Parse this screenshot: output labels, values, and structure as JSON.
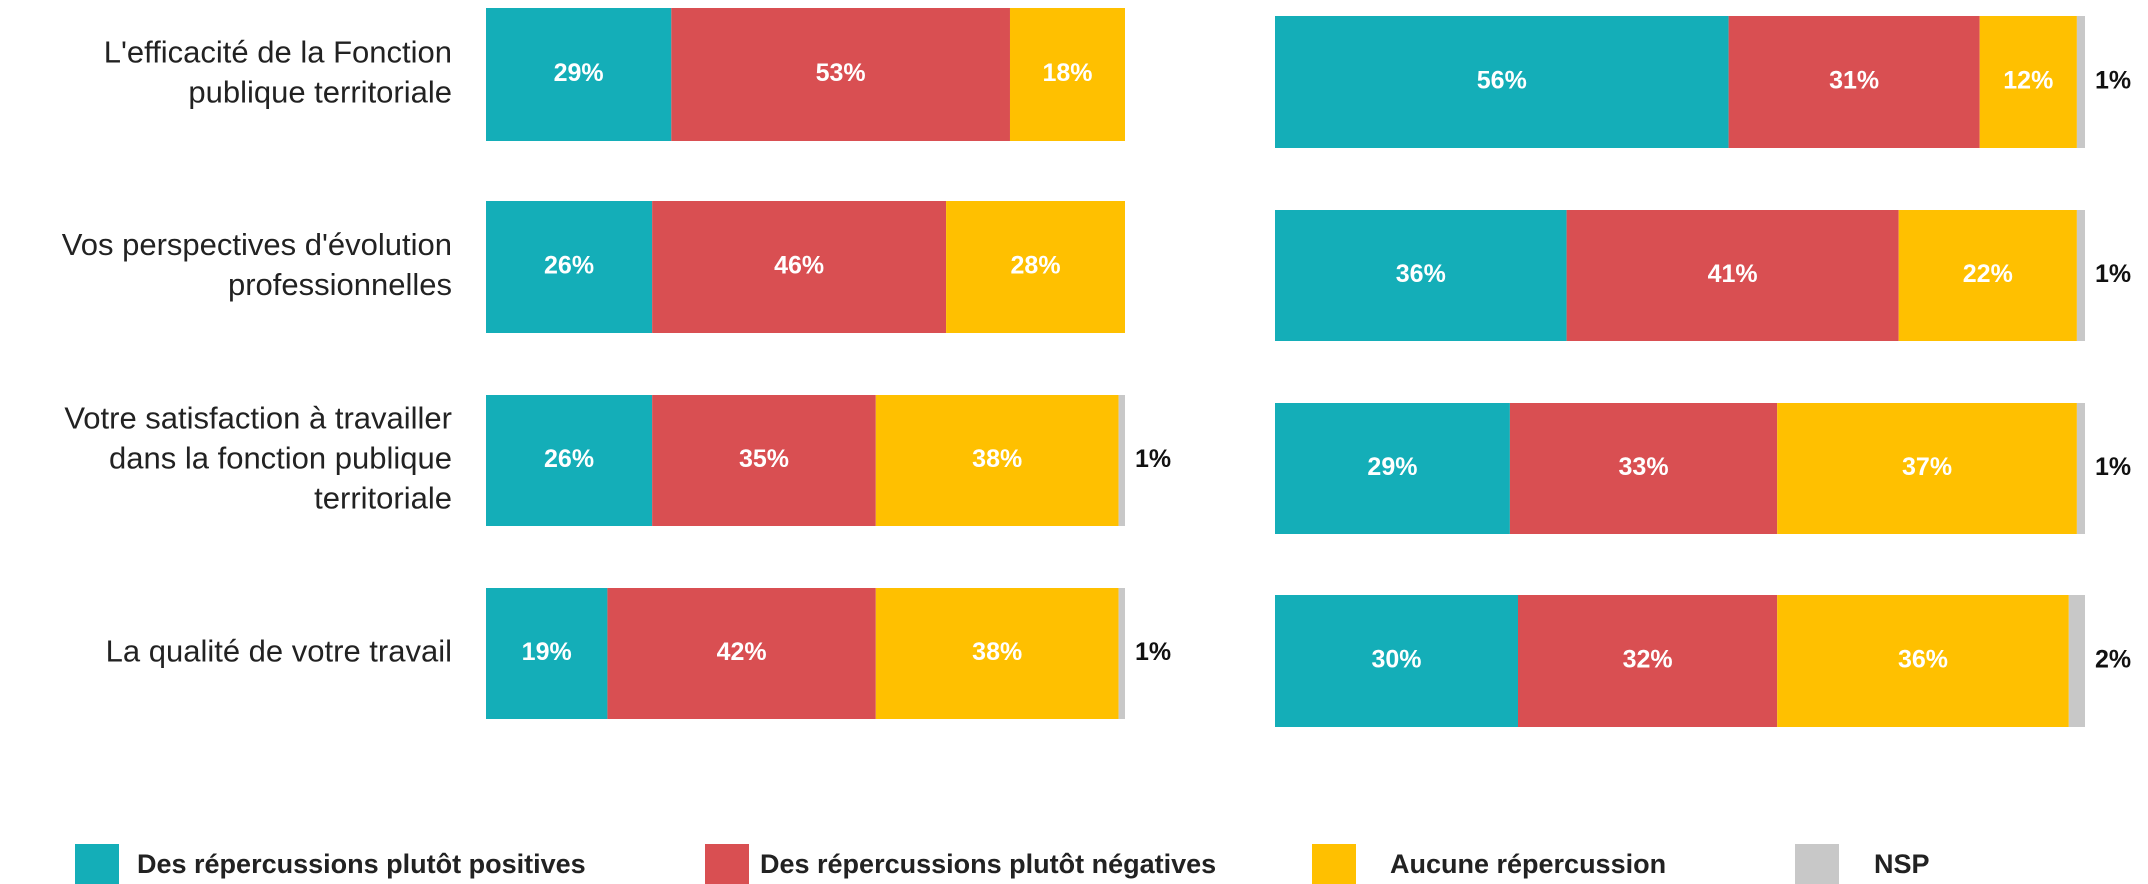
{
  "chart_data": [
    {
      "type": "bar",
      "orientation": "horizontal",
      "stacked": true,
      "xlim": [
        0,
        100
      ],
      "categories": [
        "L'efficacité de la Fonction\npublique territoriale",
        "Vos perspectives d'évolution\nprofessionnelles",
        "Votre satisfaction à travailler\ndans la fonction publique\nterritoriale",
        "La qualité de votre travail"
      ],
      "series": [
        {
          "name": "Des répercussions plutôt positives",
          "color": "#14aeb8",
          "values": [
            29,
            26,
            26,
            19
          ],
          "value_labels": [
            "29%",
            "26%",
            "26%",
            "19%"
          ]
        },
        {
          "name": "Des répercussions plutôt négatives",
          "color": "#d94f52",
          "values": [
            53,
            46,
            35,
            42
          ],
          "value_labels": [
            "53%",
            "46%",
            "35%",
            "42%"
          ]
        },
        {
          "name": "Aucune répercussion",
          "color": "#ffc000",
          "values": [
            18,
            28,
            38,
            38
          ],
          "value_labels": [
            "18%",
            "28%",
            "38%",
            "38%"
          ]
        },
        {
          "name": "NSP",
          "color": "#c8c8c8",
          "values": [
            null,
            null,
            1,
            1
          ],
          "value_labels": [
            null,
            null,
            "1%",
            "1%"
          ]
        }
      ]
    },
    {
      "type": "bar",
      "orientation": "horizontal",
      "stacked": true,
      "xlim": [
        0,
        100
      ],
      "series": [
        {
          "color": "#14aeb8",
          "values": [
            56,
            36,
            29,
            30
          ],
          "value_labels": [
            "56%",
            "36%",
            "29%",
            "30%"
          ]
        },
        {
          "color": "#d94f52",
          "values": [
            31,
            41,
            33,
            32
          ],
          "value_labels": [
            "31%",
            "41%",
            "33%",
            "32%"
          ]
        },
        {
          "color": "#ffc000",
          "values": [
            12,
            22,
            37,
            36
          ],
          "value_labels": [
            "12%",
            "22%",
            "37%",
            "36%"
          ]
        },
        {
          "color": "#c8c8c8",
          "values": [
            1,
            1,
            1,
            2
          ],
          "value_labels": [
            "1%",
            "1%",
            "1%",
            "2%"
          ]
        }
      ]
    }
  ]
}
